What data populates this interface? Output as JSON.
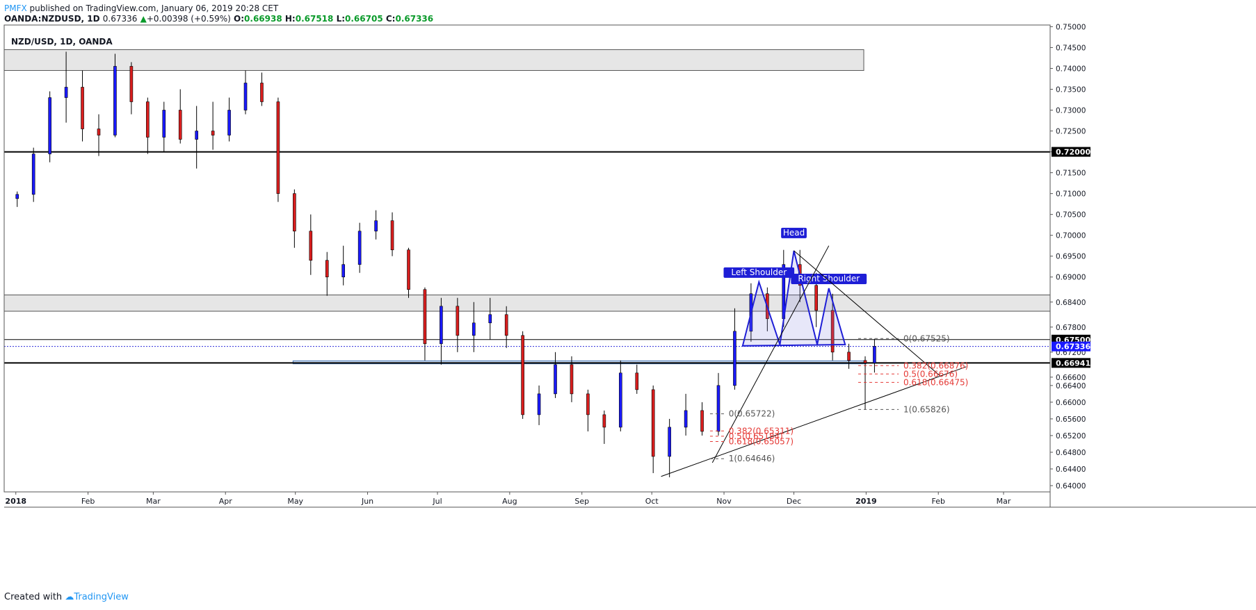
{
  "header": {
    "brand": "PMFX",
    "published": " published on TradingView.com, January 06, 2019 20:28 CET",
    "symbol": "OANDA:NZDUSD, 1D",
    "last": "0.67336",
    "change": "+0.00398 (+0.59%)",
    "o_label": "O:",
    "o": "0.66938",
    "h_label": "H:",
    "h": "0.67518",
    "l_label": "L:",
    "l": "0.66705",
    "c_label": "C:",
    "c": "0.67336"
  },
  "footer": {
    "created_with": "Created with",
    "brand": "TradingView"
  },
  "colors": {
    "up": "#1a1aff",
    "down": "#d91e1e",
    "pattern": "#1e1ed6",
    "fib": "#e53935",
    "zone": "#e6e6e6",
    "hline": "#000000",
    "dotted": "#2b2bd9"
  },
  "chart_data": {
    "type": "candlestick",
    "title": "NZD/USD, 1D, OANDA",
    "x_ticks": [
      "2018",
      "Feb",
      "Mar",
      "Apr",
      "May",
      "Jun",
      "Jul",
      "Aug",
      "Sep",
      "Oct",
      "Nov",
      "Dec",
      "2019",
      "Feb",
      "Mar"
    ],
    "x_tick_dates": [
      "2018-01-01",
      "2018-02-01",
      "2018-03-01",
      "2018-04-01",
      "2018-05-01",
      "2018-06-01",
      "2018-07-01",
      "2018-08-01",
      "2018-09-01",
      "2018-10-01",
      "2018-11-01",
      "2018-12-01",
      "2019-01-01",
      "2019-02-01",
      "2019-03-01"
    ],
    "y_ticks": [
      "0.75000",
      "0.74500",
      "0.74000",
      "0.73500",
      "0.73000",
      "0.72500",
      "0.72000",
      "0.71500",
      "0.71000",
      "0.70500",
      "0.70000",
      "0.69500",
      "0.69000",
      "0.68400",
      "0.67800",
      "0.67200",
      "0.66600",
      "0.66400",
      "0.66000",
      "0.65600",
      "0.65200",
      "0.64800",
      "0.64400",
      "0.64000"
    ],
    "ylim": [
      0.6385,
      0.7504
    ],
    "xlim": [
      "2017-12-27",
      "2019-03-21"
    ],
    "price_labels": [
      {
        "text": "0.72000",
        "value": 0.72,
        "style": "black"
      },
      {
        "text": "0.67500",
        "value": 0.675,
        "style": "black"
      },
      {
        "text": "0.67336",
        "value": 0.67336,
        "style": "blue"
      },
      {
        "text": "0.66941",
        "value": 0.66941,
        "style": "black"
      }
    ],
    "zones": [
      {
        "from": "2017-12-27",
        "to": "2018-12-31",
        "low": 0.7395,
        "high": 0.7445
      },
      {
        "from": "2017-12-27",
        "to": "2019-03-21",
        "low": 0.6818,
        "high": 0.6857
      },
      {
        "from": "2018-04-30",
        "to": "2019-01-01",
        "low": 0.6692,
        "high": 0.6699
      }
    ],
    "horizontal_lines": [
      0.72,
      0.66941,
      0.675
    ],
    "pattern_labels": [
      {
        "text": "Left Shoulder",
        "date": "2018-11-16",
        "price": 0.6888
      },
      {
        "text": "Head",
        "date": "2018-12-01",
        "price": 0.6983
      },
      {
        "text": "Right Shoulder",
        "date": "2018-12-16",
        "price": 0.6873
      }
    ],
    "pattern_points": [
      {
        "date": "2018-11-09",
        "price": 0.6735
      },
      {
        "date": "2018-11-16",
        "price": 0.6888
      },
      {
        "date": "2018-11-25",
        "price": 0.6738
      },
      {
        "date": "2018-12-01",
        "price": 0.6963
      },
      {
        "date": "2018-12-11",
        "price": 0.6738
      },
      {
        "date": "2018-12-16",
        "price": 0.6873
      },
      {
        "date": "2018-12-23",
        "price": 0.6738
      }
    ],
    "fib_upper": [
      {
        "text": "0(0.67525)",
        "price": 0.67525,
        "color": "#555555"
      },
      {
        "text": "0.382(0.66876)",
        "price": 0.66876,
        "color": "#e53935"
      },
      {
        "text": "0.5(0.66676)",
        "price": 0.66676,
        "color": "#e53935"
      },
      {
        "text": "0.618(0.66475)",
        "price": 0.66475,
        "color": "#e53935"
      },
      {
        "text": "1(0.65826)",
        "price": 0.65826,
        "color": "#555555"
      }
    ],
    "fib_lower": [
      {
        "text": "0(0.65722)",
        "price": 0.65722,
        "color": "#555555"
      },
      {
        "text": "0.382(0.65311)",
        "price": 0.65311,
        "color": "#e53935"
      },
      {
        "text": "0.5(0.65184)",
        "price": 0.65184,
        "color": "#e53935"
      },
      {
        "text": "0.618(0.65057)",
        "price": 0.65057,
        "color": "#e53935"
      },
      {
        "text": "1(0.64646)",
        "price": 0.64646,
        "color": "#555555"
      }
    ],
    "trendlines": [
      {
        "from": {
          "date": "2018-10-05",
          "price": 0.6422
        },
        "to": {
          "date": "2019-02-13",
          "price": 0.6685
        }
      },
      {
        "from": {
          "date": "2018-10-27",
          "price": 0.6455
        },
        "to": {
          "date": "2018-12-16",
          "price": 0.6975
        }
      },
      {
        "from": {
          "date": "2018-12-01",
          "price": 0.6963
        },
        "to": {
          "date": "2019-02-02",
          "price": 0.6662
        }
      }
    ],
    "candles": [
      [
        "2018-01-01",
        0.7088,
        0.7105,
        0.7068,
        0.7098
      ],
      [
        "2018-01-08",
        0.7098,
        0.721,
        0.708,
        0.7195
      ],
      [
        "2018-01-15",
        0.7195,
        0.7345,
        0.7175,
        0.733
      ],
      [
        "2018-01-22",
        0.733,
        0.744,
        0.727,
        0.7355
      ],
      [
        "2018-01-29",
        0.7355,
        0.7395,
        0.7225,
        0.7255
      ],
      [
        "2018-02-05",
        0.7255,
        0.729,
        0.719,
        0.724
      ],
      [
        "2018-02-12",
        0.724,
        0.7435,
        0.7235,
        0.7405
      ],
      [
        "2018-02-19",
        0.7405,
        0.7415,
        0.729,
        0.732
      ],
      [
        "2018-02-26",
        0.732,
        0.733,
        0.7195,
        0.7235
      ],
      [
        "2018-03-05",
        0.7235,
        0.732,
        0.72,
        0.73
      ],
      [
        "2018-03-12",
        0.73,
        0.735,
        0.722,
        0.723
      ],
      [
        "2018-03-19",
        0.723,
        0.731,
        0.716,
        0.725
      ],
      [
        "2018-03-26",
        0.725,
        0.732,
        0.7205,
        0.724
      ],
      [
        "2018-04-02",
        0.724,
        0.733,
        0.7225,
        0.73
      ],
      [
        "2018-04-09",
        0.73,
        0.7395,
        0.729,
        0.7365
      ],
      [
        "2018-04-16",
        0.7365,
        0.739,
        0.731,
        0.732
      ],
      [
        "2018-04-23",
        0.732,
        0.733,
        0.708,
        0.71
      ],
      [
        "2018-04-30",
        0.71,
        0.711,
        0.697,
        0.701
      ],
      [
        "2018-05-07",
        0.701,
        0.705,
        0.6905,
        0.694
      ],
      [
        "2018-05-14",
        0.694,
        0.696,
        0.6855,
        0.69
      ],
      [
        "2018-05-21",
        0.69,
        0.6975,
        0.688,
        0.693
      ],
      [
        "2018-05-28",
        0.693,
        0.703,
        0.691,
        0.701
      ],
      [
        "2018-06-04",
        0.701,
        0.706,
        0.699,
        0.7035
      ],
      [
        "2018-06-11",
        0.7035,
        0.7055,
        0.695,
        0.6965
      ],
      [
        "2018-06-18",
        0.6965,
        0.697,
        0.685,
        0.687
      ],
      [
        "2018-06-25",
        0.687,
        0.6875,
        0.67,
        0.674
      ],
      [
        "2018-07-02",
        0.674,
        0.685,
        0.669,
        0.683
      ],
      [
        "2018-07-09",
        0.683,
        0.685,
        0.672,
        0.676
      ],
      [
        "2018-07-16",
        0.676,
        0.684,
        0.672,
        0.679
      ],
      [
        "2018-07-23",
        0.679,
        0.685,
        0.675,
        0.681
      ],
      [
        "2018-07-30",
        0.681,
        0.683,
        0.673,
        0.676
      ],
      [
        "2018-08-06",
        0.676,
        0.677,
        0.656,
        0.657
      ],
      [
        "2018-08-13",
        0.657,
        0.664,
        0.6545,
        0.662
      ],
      [
        "2018-08-20",
        0.662,
        0.672,
        0.661,
        0.669
      ],
      [
        "2018-08-27",
        0.669,
        0.671,
        0.66,
        0.662
      ],
      [
        "2018-09-03",
        0.662,
        0.663,
        0.653,
        0.657
      ],
      [
        "2018-09-10",
        0.657,
        0.658,
        0.65,
        0.654
      ],
      [
        "2018-09-17",
        0.654,
        0.67,
        0.653,
        0.667
      ],
      [
        "2018-09-24",
        0.667,
        0.669,
        0.662,
        0.663
      ],
      [
        "2018-10-01",
        0.663,
        0.664,
        0.643,
        0.647
      ],
      [
        "2018-10-08",
        0.647,
        0.656,
        0.642,
        0.654
      ],
      [
        "2018-10-15",
        0.654,
        0.662,
        0.652,
        0.658
      ],
      [
        "2018-10-22",
        0.658,
        0.66,
        0.652,
        0.653
      ],
      [
        "2018-10-29",
        0.653,
        0.667,
        0.652,
        0.664
      ],
      [
        "2018-11-05",
        0.664,
        0.6825,
        0.663,
        0.677
      ],
      [
        "2018-11-12",
        0.677,
        0.6885,
        0.6745,
        0.686
      ],
      [
        "2018-11-19",
        0.686,
        0.6875,
        0.677,
        0.68
      ],
      [
        "2018-11-26",
        0.68,
        0.6965,
        0.678,
        0.693
      ],
      [
        "2018-12-03",
        0.693,
        0.6965,
        0.684,
        0.688
      ],
      [
        "2018-12-10",
        0.688,
        0.691,
        0.678,
        0.682
      ],
      [
        "2018-12-17",
        0.682,
        0.686,
        0.67,
        0.672
      ],
      [
        "2018-12-24",
        0.672,
        0.674,
        0.668,
        0.67
      ],
      [
        "2018-12-31",
        0.67,
        0.671,
        0.6583,
        0.6694
      ],
      [
        "2019-01-04",
        0.6694,
        0.6752,
        0.6671,
        0.6734
      ]
    ]
  }
}
